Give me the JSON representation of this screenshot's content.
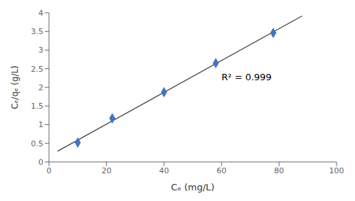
{
  "chart_data": {
    "type": "scatter",
    "xlabel": "Cₑ (mg/L)",
    "ylabel": "Cₑ/qₑ (g/L)",
    "series": [
      {
        "type": "scatter",
        "x": [
          10,
          22,
          40,
          58,
          78
        ],
        "values": [
          0.52,
          1.17,
          1.87,
          2.65,
          3.46
        ],
        "color": "#4472C4",
        "marker": "diamond"
      },
      {
        "type": "line",
        "x": [
          3,
          88
        ],
        "values": [
          0.2879,
          3.9127
        ],
        "color": "#404040",
        "line_style": "solid"
      }
    ],
    "annotations": [
      {
        "text": "R² = 0.999",
        "x": 60,
        "y": 2.2
      }
    ],
    "xlim": [
      0,
      100
    ],
    "ylim": [
      0,
      4
    ],
    "xticks": [
      0,
      20,
      40,
      60,
      80,
      100
    ],
    "yticks": [
      0,
      0.5,
      1,
      1.5,
      2,
      2.5,
      3,
      3.5,
      4
    ],
    "grid": false
  }
}
